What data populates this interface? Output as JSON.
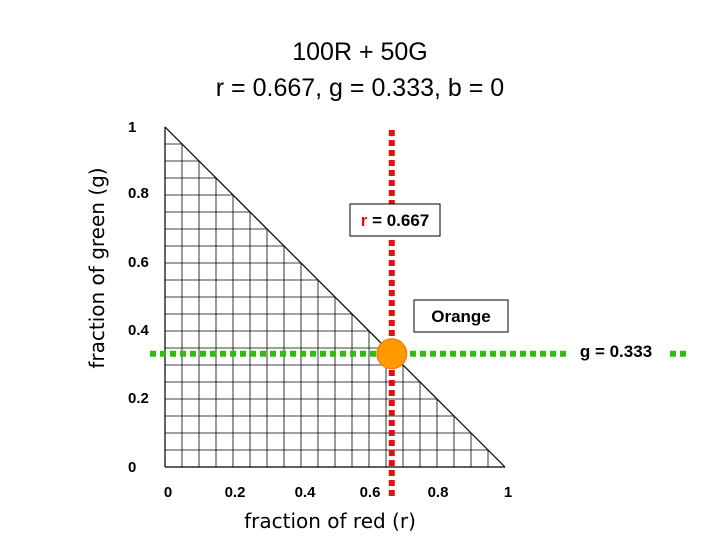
{
  "chart_data": {
    "type": "scatter",
    "title": "100R + 50G",
    "subtitle": "r = 0.667,  g = 0.333,  b = 0",
    "xlabel": "fraction of red (r)",
    "ylabel": "fraction of green (g)",
    "xlim": [
      0,
      1
    ],
    "ylim": [
      0,
      1
    ],
    "x_ticks": [
      "0",
      "0.2",
      "0.4",
      "0.6",
      "0.8",
      "1"
    ],
    "y_ticks": [
      "0",
      "0.2",
      "0.4",
      "0.6",
      "0.8",
      "1"
    ],
    "grid": "on, triangular region r + g ≤ 1",
    "points": [
      {
        "x": 0.667,
        "y": 0.333,
        "label": "Orange",
        "color": "#ff9900"
      }
    ],
    "reference_lines": [
      {
        "axis": "x",
        "value": 0.667,
        "color": "#dd1111",
        "label_prefix": "r",
        "label_suffix": " = 0.667"
      },
      {
        "axis": "y",
        "value": 0.333,
        "color": "#33bb11",
        "label": "g = 0.333"
      }
    ],
    "colors": {
      "grid": "#000000",
      "red_line": "#dd1111",
      "green_line": "#33bb11",
      "point": "#ff9900",
      "point_edge": "#ee7700"
    }
  }
}
